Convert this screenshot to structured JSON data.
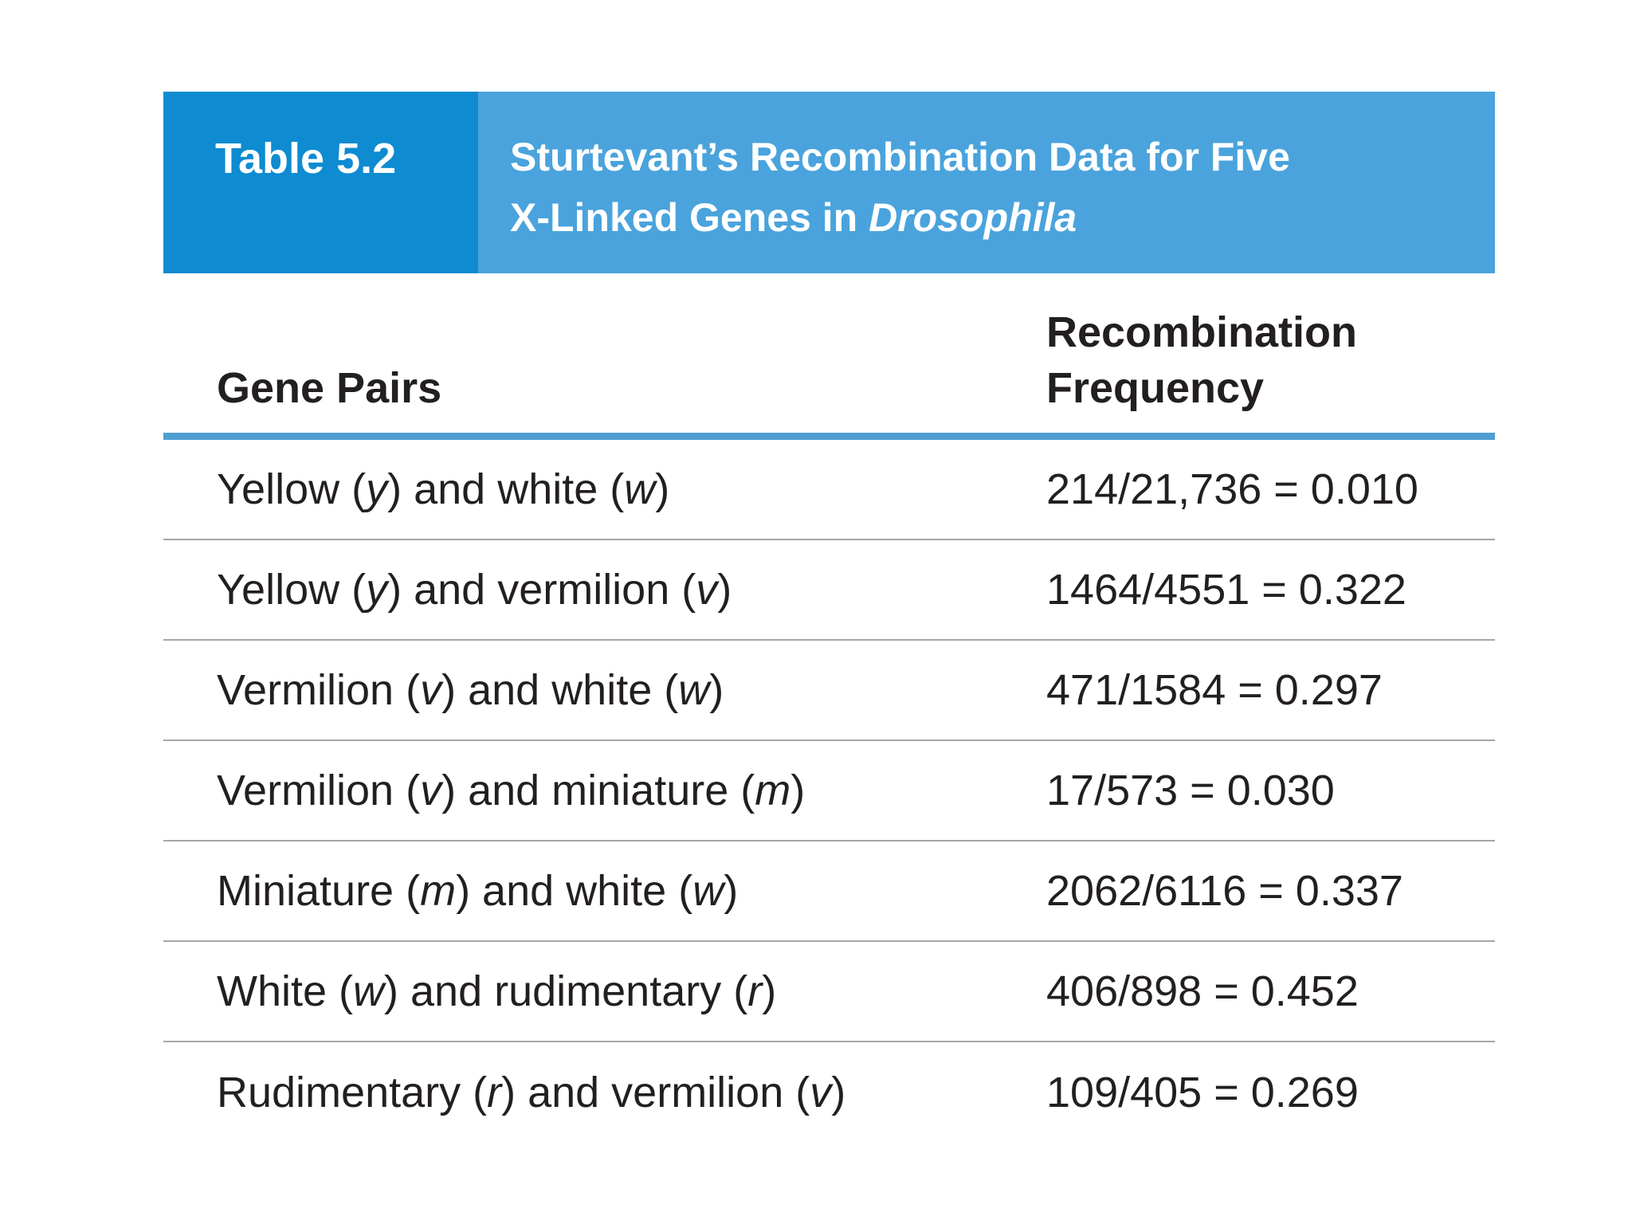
{
  "banner": {
    "label": "Table 5.2",
    "label_bg": "#0e8bd1",
    "title_bg": "#4aa3dc",
    "text_color": "#ffffff",
    "title_line1_parts": [
      {
        "t": "Sturtevant’s Recombination Data for Five"
      }
    ],
    "title_line2_parts": [
      {
        "t": "X-Linked Genes in "
      },
      {
        "t": "Drosophila",
        "i": true
      }
    ]
  },
  "table": {
    "col1_header": "Gene Pairs",
    "col2_header_line1": "Recombination",
    "col2_header_line2": "Frequency",
    "header_rule_color": "#4f9fd3",
    "row_divider_color": "#a6a6a6",
    "text_color": "#231f20",
    "rows": [
      {
        "pair_parts": [
          {
            "t": "Yellow ("
          },
          {
            "t": "y",
            "i": true
          },
          {
            "t": ") and white ("
          },
          {
            "t": "w",
            "i": true
          },
          {
            "t": ")"
          }
        ],
        "frequency": "214/21,736 = 0.010"
      },
      {
        "pair_parts": [
          {
            "t": "Yellow ("
          },
          {
            "t": "y",
            "i": true
          },
          {
            "t": ") and vermilion ("
          },
          {
            "t": "v",
            "i": true
          },
          {
            "t": ")"
          }
        ],
        "frequency": "1464/4551 = 0.322"
      },
      {
        "pair_parts": [
          {
            "t": "Vermilion ("
          },
          {
            "t": "v",
            "i": true
          },
          {
            "t": ") and white ("
          },
          {
            "t": "w",
            "i": true
          },
          {
            "t": ")"
          }
        ],
        "frequency": "471/1584 = 0.297"
      },
      {
        "pair_parts": [
          {
            "t": "Vermilion ("
          },
          {
            "t": "v",
            "i": true
          },
          {
            "t": ") and miniature ("
          },
          {
            "t": "m",
            "i": true
          },
          {
            "t": ")"
          }
        ],
        "frequency": "17/573 = 0.030"
      },
      {
        "pair_parts": [
          {
            "t": "Miniature ("
          },
          {
            "t": "m",
            "i": true
          },
          {
            "t": ") and white ("
          },
          {
            "t": "w",
            "i": true
          },
          {
            "t": ")"
          }
        ],
        "frequency": "2062/6116 = 0.337"
      },
      {
        "pair_parts": [
          {
            "t": "White ("
          },
          {
            "t": "w",
            "i": true
          },
          {
            "t": ") and rudimentary ("
          },
          {
            "t": "r",
            "i": true
          },
          {
            "t": ")"
          }
        ],
        "frequency": "406/898 = 0.452"
      },
      {
        "pair_parts": [
          {
            "t": "Rudimentary ("
          },
          {
            "t": "r",
            "i": true
          },
          {
            "t": ") and vermilion ("
          },
          {
            "t": "v",
            "i": true
          },
          {
            "t": ")"
          }
        ],
        "frequency": "109/405 = 0.269"
      }
    ]
  }
}
